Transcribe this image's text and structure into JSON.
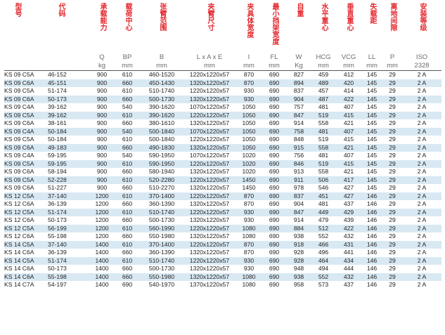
{
  "headers": [
    {
      "cn": "型号",
      "sym": "",
      "unit": ""
    },
    {
      "cn": "代码",
      "sym": "",
      "unit": ""
    },
    {
      "cn": "承载能力",
      "sym": "Q",
      "unit": "kg"
    },
    {
      "cn": "载荷中心",
      "sym": "BP",
      "unit": "mm"
    },
    {
      "cn": "张臂范围",
      "sym": "B",
      "unit": "mm"
    },
    {
      "cn": "夹臂尺寸",
      "sym": "L x A x E",
      "unit": "mm"
    },
    {
      "cn": "夹具体宽度",
      "sym": "I",
      "unit": "mm"
    },
    {
      "cn": "最小挡架宽度",
      "sym": "FL",
      "unit": "mm"
    },
    {
      "cn": "自重",
      "sym": "W",
      "unit": "Kg"
    },
    {
      "cn": "水平重心",
      "sym": "HCG",
      "unit": "mm"
    },
    {
      "cn": "垂直重心",
      "sym": "VCG",
      "unit": "mm"
    },
    {
      "cn": "失载距",
      "sym": "LL",
      "unit": "mm"
    },
    {
      "cn": "离地间隙",
      "sym": "P",
      "unit": "mm"
    },
    {
      "cn": "安装等级",
      "sym": "ISO",
      "unit": "2328"
    }
  ],
  "rows": [
    [
      "KS 09 C5A",
      "46-152",
      "900",
      "610",
      "460-1520",
      "1220x1220x57",
      "870",
      "690",
      "827",
      "459",
      "412",
      "145",
      "29",
      "2 A"
    ],
    [
      "KS 09 C6A",
      "45-151",
      "900",
      "660",
      "450-1430",
      "1320x1220x57",
      "870",
      "690",
      "894",
      "489",
      "420",
      "145",
      "29",
      "2 A"
    ],
    [
      "KS 09 C5A",
      "51-174",
      "900",
      "610",
      "510-1740",
      "1220x1220x57",
      "930",
      "690",
      "837",
      "457",
      "414",
      "145",
      "29",
      "2 A"
    ],
    [
      "KS 09 C6A",
      "50-173",
      "900",
      "660",
      "500-1730",
      "1320x1220x57",
      "930",
      "690",
      "904",
      "487",
      "422",
      "145",
      "29",
      "2 A"
    ],
    [
      "KS 09 C4A",
      "39-162",
      "900",
      "540",
      "390-1620",
      "1070x1220x57",
      "1050",
      "690",
      "757",
      "481",
      "407",
      "145",
      "29",
      "2 A"
    ],
    [
      "KS 09 C5A",
      "39-162",
      "900",
      "610",
      "390-1620",
      "1220x1220x57",
      "1050",
      "690",
      "847",
      "519",
      "415",
      "145",
      "29",
      "2 A"
    ],
    [
      "KS 09 C6A",
      "38-161",
      "900",
      "660",
      "380-1610",
      "1320x1220x57",
      "1050",
      "690",
      "914",
      "558",
      "421",
      "145",
      "29",
      "2 A"
    ],
    [
      "KS 09 C4A",
      "50-184",
      "900",
      "540",
      "500-1840",
      "1070x1220x57",
      "1050",
      "690",
      "758",
      "481",
      "407",
      "145",
      "29",
      "2 A"
    ],
    [
      "KS 09 C5A",
      "50-184",
      "900",
      "610",
      "500-1840",
      "1220x1220x57",
      "1050",
      "690",
      "848",
      "519",
      "415",
      "145",
      "29",
      "2 A"
    ],
    [
      "KS 09 C6A",
      "49-183",
      "900",
      "660",
      "490-1830",
      "1320x1220x57",
      "1050",
      "690",
      "915",
      "558",
      "421",
      "145",
      "29",
      "2 A"
    ],
    [
      "KS 09 C4A",
      "59-195",
      "900",
      "540",
      "590-1950",
      "1070x1220x57",
      "1020",
      "690",
      "756",
      "481",
      "407",
      "145",
      "29",
      "2 A"
    ],
    [
      "KS 09 C5A",
      "59-195",
      "900",
      "610",
      "590-1950",
      "1220x1220x57",
      "1020",
      "690",
      "846",
      "519",
      "415",
      "145",
      "29",
      "2 A"
    ],
    [
      "KS 09 C6A",
      "58-194",
      "900",
      "660",
      "580-1940",
      "1320x1220x57",
      "1020",
      "690",
      "913",
      "558",
      "421",
      "145",
      "29",
      "2 A"
    ],
    [
      "KS 09 C5A",
      "52-228",
      "900",
      "610",
      "520-2280",
      "1220x1220x57",
      "1450",
      "690",
      "911",
      "506",
      "417",
      "145",
      "29",
      "2 A"
    ],
    [
      "KS 09 C6A",
      "51-227",
      "900",
      "660",
      "510-2270",
      "1320x1220x57",
      "1450",
      "690",
      "978",
      "546",
      "427",
      "145",
      "29",
      "2 A"
    ],
    [
      "KS 12 C5A",
      "37-140",
      "1200",
      "610",
      "370-1400",
      "1220x1220x57",
      "870",
      "690",
      "837",
      "451",
      "427",
      "146",
      "29",
      "2 A"
    ],
    [
      "KS 12 C6A",
      "36-139",
      "1200",
      "660",
      "360-1390",
      "1320x1220x57",
      "870",
      "690",
      "904",
      "481",
      "437",
      "146",
      "29",
      "2 A"
    ],
    [
      "KS 12 C5A",
      "51-174",
      "1200",
      "610",
      "510-1740",
      "1220x1220x57",
      "930",
      "690",
      "847",
      "449",
      "429",
      "146",
      "29",
      "2 A"
    ],
    [
      "KS 12 C6A",
      "50-173",
      "1200",
      "660",
      "500-1730",
      "1320x1220x57",
      "930",
      "690",
      "914",
      "479",
      "439",
      "146",
      "29",
      "2 A"
    ],
    [
      "KS 12 C5A",
      "56-199",
      "1200",
      "610",
      "560-1990",
      "1220x1220x57",
      "1080",
      "690",
      "884",
      "512",
      "422",
      "146",
      "29",
      "2 A"
    ],
    [
      "KS 12 C6A",
      "55-198",
      "1200",
      "660",
      "550-1980",
      "1320x1220x57",
      "1080",
      "690",
      "938",
      "552",
      "432",
      "146",
      "29",
      "2 A"
    ],
    [
      "KS 14 C5A",
      "37-140",
      "1400",
      "610",
      "370-1400",
      "1220x1220x57",
      "870",
      "690",
      "918",
      "466",
      "431",
      "146",
      "29",
      "2 A"
    ],
    [
      "KS 14 C6A",
      "36-139",
      "1400",
      "660",
      "360-1390",
      "1320x1220x57",
      "870",
      "690",
      "928",
      "496",
      "441",
      "146",
      "29",
      "2 A"
    ],
    [
      "KS 14 C5A",
      "51-174",
      "1400",
      "610",
      "510-1740",
      "1220x1220x57",
      "930",
      "690",
      "928",
      "464",
      "434",
      "146",
      "29",
      "2 A"
    ],
    [
      "KS 14 C6A",
      "50-173",
      "1400",
      "660",
      "500-1730",
      "1320x1220x57",
      "930",
      "690",
      "948",
      "494",
      "444",
      "146",
      "29",
      "2 A"
    ],
    [
      "KS 14 C6A",
      "55-198",
      "1400",
      "660",
      "550-1980",
      "1320x1220x57",
      "1080",
      "690",
      "938",
      "552",
      "432",
      "146",
      "29",
      "2 A"
    ],
    [
      "KS 14 C7A",
      "54-197",
      "1400",
      "690",
      "540-1970",
      "1370x1220x57",
      "1080",
      "690",
      "958",
      "573",
      "437",
      "146",
      "29",
      "2 A"
    ]
  ],
  "header_color": "#e4262c",
  "stripe_color": "#d9e9f3"
}
